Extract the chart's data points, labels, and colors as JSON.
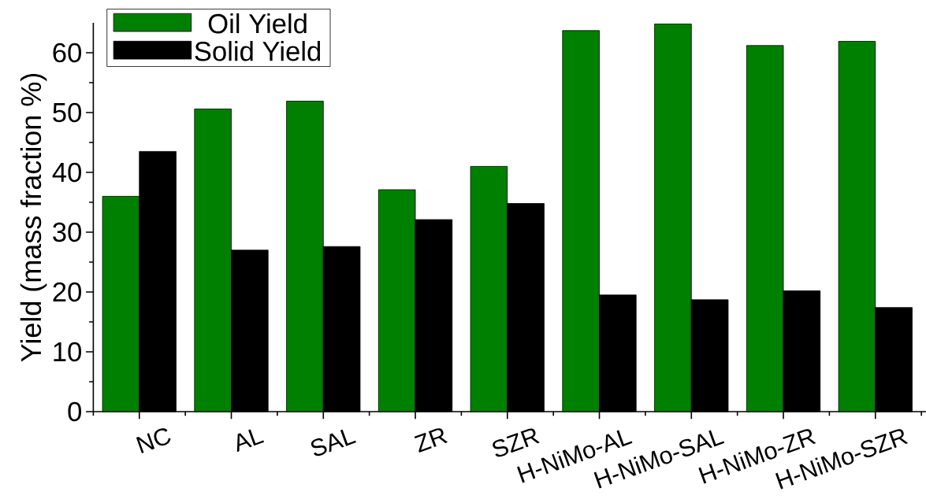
{
  "chart_data": {
    "type": "bar",
    "ylabel": "Yield (mass fraction %)",
    "categories": [
      "NC",
      "AL",
      "SAL",
      "ZR",
      "SZR",
      "H-NiMo-AL",
      "H-NiMo-SAL",
      "H-NiMo-ZR",
      "H-NiMo-SZR"
    ],
    "series": [
      {
        "name": "Oil Yield",
        "color": "#008000",
        "values": [
          36.0,
          50.6,
          51.9,
          37.1,
          41.0,
          63.7,
          64.8,
          61.2,
          61.9
        ]
      },
      {
        "name": "Solid Yield",
        "color": "#000000",
        "values": [
          43.5,
          27.0,
          27.6,
          32.1,
          34.8,
          19.5,
          18.7,
          20.2,
          17.4
        ]
      }
    ],
    "ylim": [
      0,
      65
    ],
    "yticks": [
      0,
      10,
      20,
      30,
      40,
      50,
      60
    ],
    "legend": "top left"
  }
}
